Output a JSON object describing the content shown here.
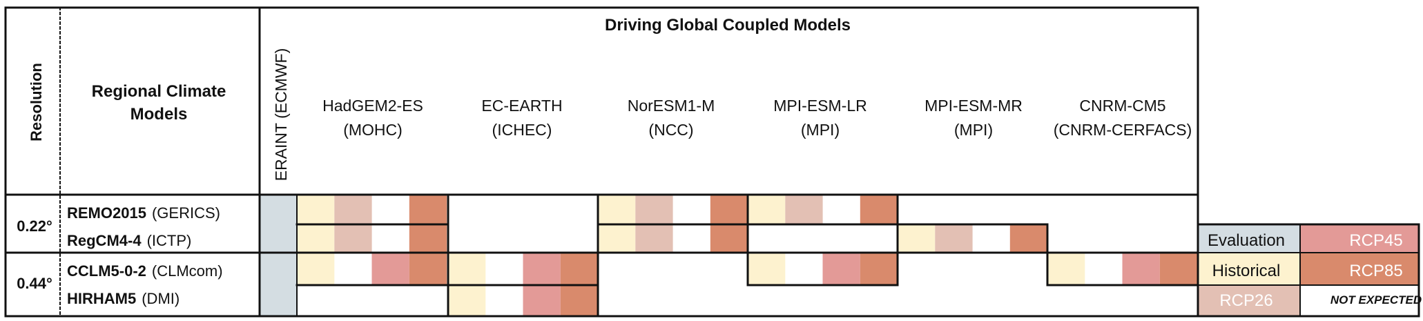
{
  "header": {
    "resolution": "Resolution",
    "rcm_title_1": "Regional Climate",
    "rcm_title_2": "Models",
    "driving_title": "Driving Global Coupled Models",
    "eraint": "ERAINT (ECMWF)"
  },
  "gcms": [
    {
      "name": "HadGEM2-ES",
      "inst": "(MOHC)"
    },
    {
      "name": "EC-EARTH",
      "inst": "(ICHEC)"
    },
    {
      "name": "NorESM1-M",
      "inst": "(NCC)"
    },
    {
      "name": "MPI-ESM-LR",
      "inst": "(MPI)"
    },
    {
      "name": "MPI-ESM-MR",
      "inst": "(MPI)"
    },
    {
      "name": "CNRM-CM5",
      "inst": "(CNRM-CERFACS)"
    }
  ],
  "resolutions": [
    "0.22°",
    "0.44°"
  ],
  "rcms": [
    {
      "name": "REMO2015",
      "inst": "(GERICS)"
    },
    {
      "name": "RegCM4-4",
      "inst": "(ICTP)"
    },
    {
      "name": "CCLM5-0-2",
      "inst": "(CLMcom)"
    },
    {
      "name": "HIRHAM5",
      "inst": "(DMI)"
    }
  ],
  "colors": {
    "evaluation": "#d4dde2",
    "historical": "#fdf2cf",
    "rcp26": "#e3c0b4",
    "rcp45": "#e39a97",
    "rcp85": "#d98a6c",
    "not_expected": "#ffffff"
  },
  "matrix": [
    [
      [
        "historical",
        "rcp26",
        "none",
        "rcp85"
      ],
      [
        "none",
        "none",
        "none",
        "none"
      ],
      [
        "historical",
        "rcp26",
        "none",
        "rcp85"
      ],
      [
        "historical",
        "rcp26",
        "none",
        "rcp85"
      ],
      [
        "none",
        "none",
        "none",
        "none"
      ],
      [
        "none",
        "none",
        "none",
        "none"
      ]
    ],
    [
      [
        "historical",
        "rcp26",
        "none",
        "rcp85"
      ],
      [
        "none",
        "none",
        "none",
        "none"
      ],
      [
        "historical",
        "rcp26",
        "none",
        "rcp85"
      ],
      [
        "none",
        "none",
        "none",
        "none"
      ],
      [
        "historical",
        "rcp26",
        "none",
        "rcp85"
      ],
      [
        "none",
        "none",
        "none",
        "none"
      ]
    ],
    [
      [
        "historical",
        "none",
        "rcp45",
        "rcp85"
      ],
      [
        "historical",
        "none",
        "rcp45",
        "rcp85"
      ],
      [
        "none",
        "none",
        "none",
        "none"
      ],
      [
        "historical",
        "none",
        "rcp45",
        "rcp85"
      ],
      [
        "none",
        "none",
        "none",
        "none"
      ],
      [
        "historical",
        "none",
        "rcp45",
        "rcp85"
      ]
    ],
    [
      [
        "none",
        "none",
        "none",
        "none"
      ],
      [
        "historical",
        "none",
        "rcp45",
        "rcp85"
      ],
      [
        "none",
        "none",
        "none",
        "none"
      ],
      [
        "none",
        "none",
        "none",
        "none"
      ],
      [
        "none",
        "none",
        "none",
        "none"
      ],
      [
        "none",
        "none",
        "none",
        "none"
      ]
    ]
  ],
  "legend": [
    {
      "key": "evaluation",
      "label": "Evaluation"
    },
    {
      "key": "rcp45",
      "label": "RCP45"
    },
    {
      "key": "historical",
      "label": "Historical"
    },
    {
      "key": "rcp85",
      "label": "RCP85"
    },
    {
      "key": "rcp26",
      "label": "RCP26"
    },
    {
      "key": "not_expected",
      "label": "NOT EXPECTED"
    }
  ]
}
